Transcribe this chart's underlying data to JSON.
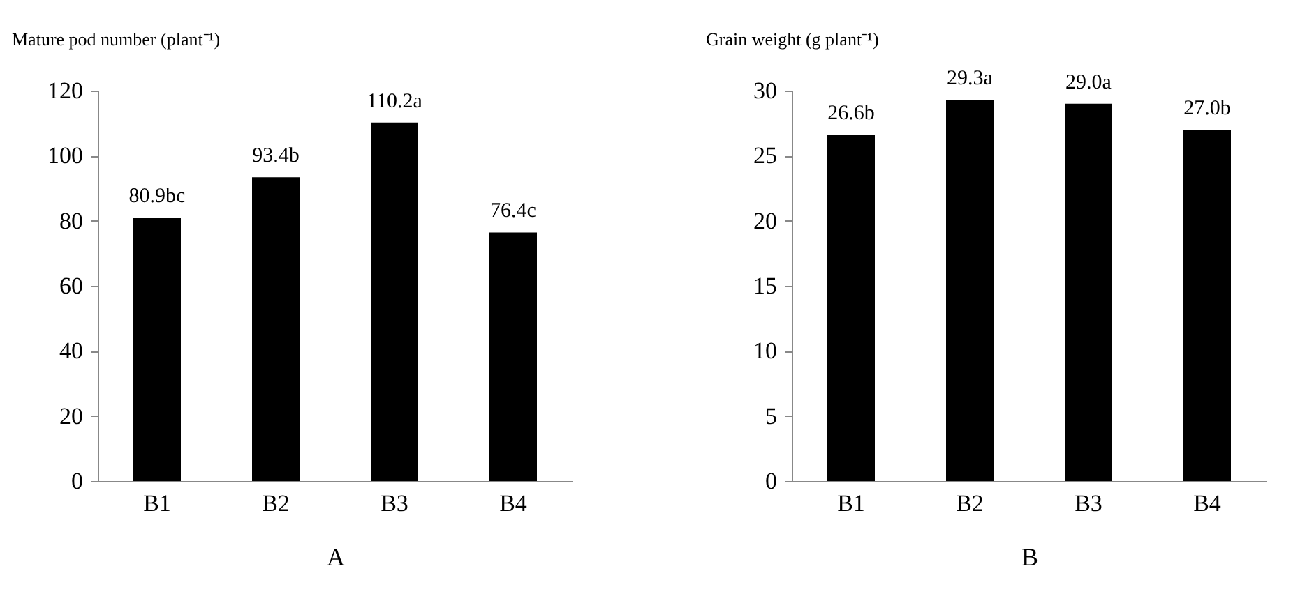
{
  "chart_data": [
    {
      "type": "bar",
      "ylabel": "Mature pod number (plant⁻¹)",
      "xlabel": "A",
      "categories": [
        "B1",
        "B2",
        "B3",
        "B4"
      ],
      "values": [
        80.9,
        93.4,
        110.2,
        76.4
      ],
      "value_labels": [
        "80.9bc",
        "93.4b",
        "110.2a",
        "76.4c"
      ],
      "color": "#000000",
      "ylim": [
        0,
        120
      ],
      "yticks": [
        0,
        20,
        40,
        60,
        80,
        100,
        120
      ],
      "grid": false
    },
    {
      "type": "bar",
      "ylabel": "Grain weight (g plant⁻¹)",
      "xlabel": "B",
      "categories": [
        "B1",
        "B2",
        "B3",
        "B4"
      ],
      "values": [
        26.6,
        29.3,
        29.0,
        27.0
      ],
      "value_labels": [
        "26.6b",
        "29.3a",
        "29.0a",
        "27.0b"
      ],
      "color": "#000000",
      "ylim": [
        0,
        30
      ],
      "yticks": [
        0,
        5,
        10,
        15,
        20,
        25,
        30
      ],
      "grid": false
    }
  ]
}
